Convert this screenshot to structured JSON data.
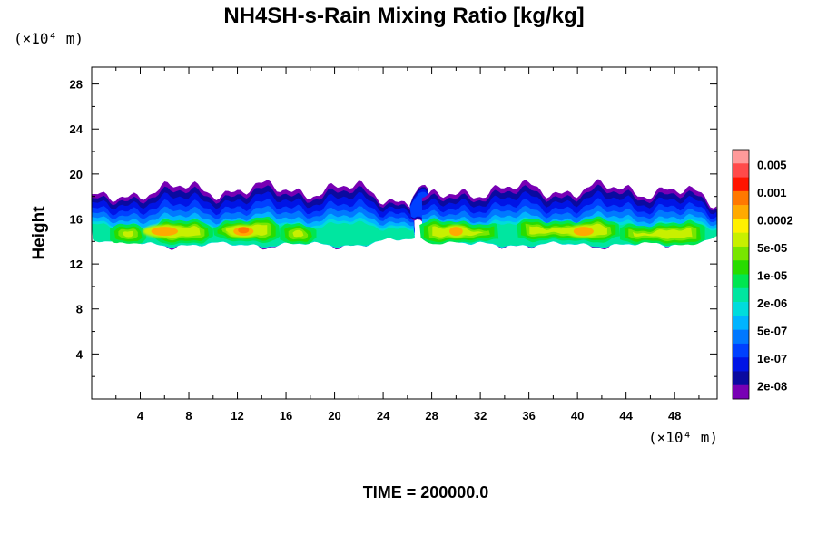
{
  "chart_data": {
    "type": "heatmap",
    "title": "NH4SH-s-Rain Mixing Ratio [kg/kg]",
    "ylabel": "Height",
    "x_unit": "(×10⁴ m)",
    "y_unit": "(×10⁴ m)",
    "xlim": [
      0,
      51.5
    ],
    "ylim": [
      0,
      29.5
    ],
    "x_ticks": [
      "4",
      "8",
      "12",
      "16",
      "20",
      "24",
      "28",
      "32",
      "36",
      "40",
      "44",
      "48"
    ],
    "y_ticks": [
      "4",
      "8",
      "12",
      "16",
      "20",
      "24",
      "28"
    ],
    "colorbar": {
      "labels": [
        "0.005",
        "0.001",
        "0.0002",
        "5e-05",
        "1e-05",
        "2e-06",
        "5e-07",
        "1e-07",
        "2e-08"
      ],
      "colors": [
        "#ff9a9a",
        "#ff4a4a",
        "#ff1400",
        "#ff7800",
        "#ffaa00",
        "#fff000",
        "#c8f000",
        "#78e600",
        "#28dc00",
        "#00e650",
        "#00e6a0",
        "#00dcdc",
        "#00b4ff",
        "#0078ff",
        "#0040ff",
        "#0014e6",
        "#0a0aa0",
        "#7800b4"
      ]
    },
    "cloud_band": {
      "height_range": [
        13,
        19
      ],
      "peak_regions": [
        {
          "x": [
            4,
            8
          ],
          "level": "0.0002"
        },
        {
          "x": [
            11,
            14
          ],
          "level": "0.001"
        },
        {
          "x": [
            29,
            31
          ],
          "level": "0.0002"
        },
        {
          "x": [
            39,
            42
          ],
          "level": "0.0002"
        }
      ],
      "gap_x": [
        25,
        27
      ]
    },
    "annotation": "TIME = 200000.0"
  }
}
